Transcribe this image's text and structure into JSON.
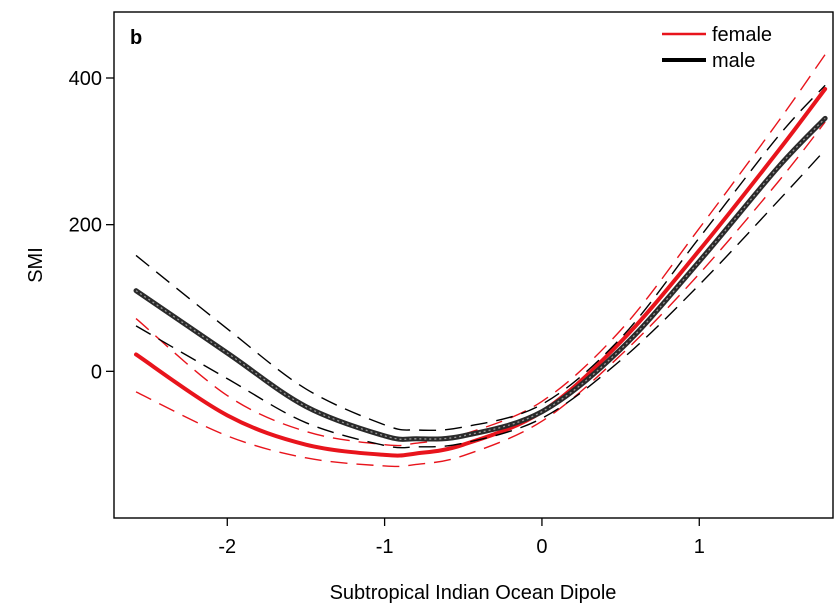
{
  "chart_data": {
    "type": "line",
    "panel_label": "b",
    "xlabel": "Subtropical Indian Ocean Dipole",
    "ylabel": "SMI",
    "xlim": [
      -2.72,
      1.85
    ],
    "ylim": [
      -200,
      490
    ],
    "xticks": [
      -2,
      -1,
      0,
      1
    ],
    "xtick_labels": [
      "-2",
      "-1",
      "0",
      "1"
    ],
    "yticks": [
      0,
      200,
      400
    ],
    "ytick_labels": [
      "0",
      "200",
      "400"
    ],
    "legend": {
      "position": "top-right",
      "entries": [
        "female",
        "male"
      ]
    },
    "grid": false,
    "series": [
      {
        "name": "female",
        "color": "#e8141c",
        "x": [
          -2.58,
          -2.0,
          -1.5,
          -1.0,
          -0.8,
          -0.5,
          0.0,
          0.5,
          1.0,
          1.5,
          1.8
        ],
        "y": [
          23,
          -60,
          -100,
          -114,
          -112,
          -100,
          -55,
          40,
          165,
          300,
          385
        ],
        "lower": [
          -28,
          -88,
          -118,
          -129,
          -127,
          -115,
          -68,
          22,
          133,
          258,
          340
        ],
        "upper": [
          72,
          -33,
          -82,
          -100,
          -98,
          -86,
          -41,
          56,
          195,
          340,
          432
        ]
      },
      {
        "name": "male",
        "color": "#000000",
        "x": [
          -2.58,
          -2.0,
          -1.5,
          -1.0,
          -0.8,
          -0.5,
          0.0,
          0.5,
          1.0,
          1.5,
          1.8
        ],
        "y": [
          110,
          25,
          -48,
          -88,
          -92,
          -88,
          -55,
          30,
          150,
          278,
          345
        ],
        "lower": [
          62,
          -10,
          -70,
          -101,
          -103,
          -98,
          -64,
          15,
          118,
          232,
          302
        ],
        "upper": [
          158,
          58,
          -24,
          -73,
          -80,
          -76,
          -45,
          45,
          182,
          320,
          390
        ]
      }
    ]
  }
}
